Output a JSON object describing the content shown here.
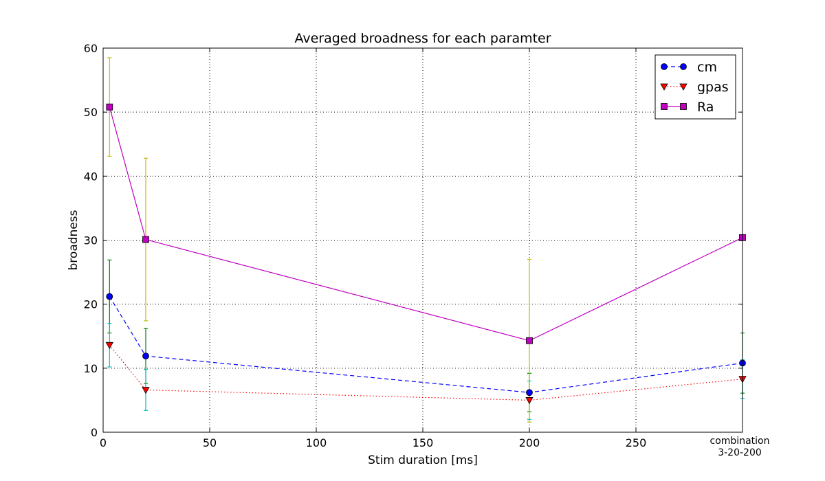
{
  "chart_data": {
    "type": "line",
    "title": "Averaged broadness for each paramter",
    "xlabel": "Stim duration [ms]",
    "ylabel": "broadness",
    "xlim": [
      0,
      300
    ],
    "ylim": [
      0,
      60
    ],
    "xticks": [
      "0",
      "50",
      "100",
      "150",
      "200",
      "250"
    ],
    "xtick_values": [
      0,
      50,
      100,
      150,
      200,
      250
    ],
    "yticks": [
      "0",
      "10",
      "20",
      "30",
      "40",
      "50",
      "60"
    ],
    "ytick_values": [
      0,
      10,
      20,
      30,
      40,
      50,
      60
    ],
    "extra_xtick": {
      "value": 300,
      "lines": [
        "combination",
        "3-20-200"
      ]
    },
    "grid": true,
    "legend_position": "top-right",
    "series": [
      {
        "name": "cm",
        "color": "#0000ff",
        "marker": "circle",
        "linestyle": "dashed",
        "error_color": "#008000",
        "x": [
          3,
          20,
          200,
          300
        ],
        "y": [
          21.2,
          11.9,
          6.2,
          10.8
        ],
        "yerr": [
          5.7,
          4.3,
          3.0,
          4.7
        ]
      },
      {
        "name": "gpas",
        "color": "#ff0000",
        "marker": "triangle-down",
        "linestyle": "dotted",
        "error_color": "#00bfbf",
        "x": [
          3,
          20,
          200,
          300
        ],
        "y": [
          13.6,
          6.6,
          5.0,
          8.3
        ],
        "yerr": [
          3.4,
          3.2,
          3.0,
          3.0
        ]
      },
      {
        "name": "Ra",
        "color": "#bf00bf",
        "marker": "square",
        "linestyle": "solid",
        "error_color": "#bfbf00",
        "x": [
          3,
          20,
          200,
          300
        ],
        "y": [
          50.8,
          30.1,
          14.3,
          30.4
        ],
        "yerr": [
          7.7,
          12.7,
          12.7,
          0.0
        ]
      }
    ]
  }
}
